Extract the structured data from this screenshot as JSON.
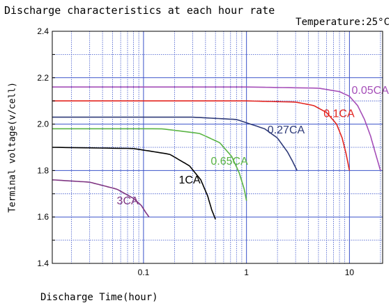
{
  "title": "Discharge characteristics at each hour rate",
  "temperature_note": "Temperature:25°C",
  "colors": {
    "grid": "#3a52c9",
    "axis": "#000000"
  },
  "chart_data": {
    "type": "line",
    "title": "Discharge characteristics at each hour rate",
    "xlabel": "Discharge Time(hour)",
    "ylabel": "Terminal voltage(v/cell)",
    "xscale": "log",
    "xlim": [
      0.013,
      21
    ],
    "ylim": [
      1.4,
      2.4
    ],
    "x_ticks": [
      {
        "value": 0.1,
        "label": "0.1"
      },
      {
        "value": 1,
        "label": "1"
      },
      {
        "value": 10,
        "label": "10"
      }
    ],
    "y_ticks": [
      {
        "value": 1.4,
        "label": "1.4"
      },
      {
        "value": 1.6,
        "label": "1.6"
      },
      {
        "value": 1.8,
        "label": "1.8"
      },
      {
        "value": 2.0,
        "label": "2.0"
      },
      {
        "value": 2.2,
        "label": "2.2"
      },
      {
        "value": 2.4,
        "label": "2.4"
      }
    ],
    "grid": true,
    "series": [
      {
        "name": "0.05CA",
        "color": "#a54eb8",
        "label_x": 10.5,
        "label_y": 2.13,
        "x": [
          0.013,
          1,
          5,
          8,
          10,
          12,
          14,
          16,
          18,
          20
        ],
        "y": [
          2.16,
          2.16,
          2.155,
          2.14,
          2.12,
          2.08,
          2.02,
          1.95,
          1.87,
          1.8
        ]
      },
      {
        "name": "0.1CA",
        "color": "#e3241f",
        "label_x": 5.6,
        "label_y": 2.03,
        "x": [
          0.013,
          1,
          3,
          4.5,
          6,
          7.5,
          8.5,
          9.3,
          10
        ],
        "y": [
          2.1,
          2.1,
          2.095,
          2.08,
          2.05,
          2.0,
          1.94,
          1.87,
          1.8
        ]
      },
      {
        "name": "0.27CA",
        "color": "#2e3a78",
        "label_x": 1.6,
        "label_y": 1.96,
        "x": [
          0.013,
          0.3,
          0.8,
          1.5,
          2,
          2.5,
          2.8,
          3.1
        ],
        "y": [
          2.03,
          2.03,
          2.02,
          1.98,
          1.94,
          1.88,
          1.84,
          1.8
        ]
      },
      {
        "name": "0.65CA",
        "color": "#5ab444",
        "label_x": 0.45,
        "label_y": 1.825,
        "x": [
          0.013,
          0.15,
          0.35,
          0.55,
          0.72,
          0.85,
          0.95,
          1.0
        ],
        "y": [
          1.98,
          1.98,
          1.96,
          1.92,
          1.86,
          1.79,
          1.72,
          1.67
        ]
      },
      {
        "name": "1CA",
        "color": "#000000",
        "label_x": 0.22,
        "label_y": 1.745,
        "x": [
          0.013,
          0.08,
          0.18,
          0.28,
          0.36,
          0.42,
          0.46,
          0.5
        ],
        "y": [
          1.9,
          1.895,
          1.87,
          1.82,
          1.76,
          1.69,
          1.63,
          1.59
        ]
      },
      {
        "name": "3CA",
        "color": "#7f3582",
        "label_x": 0.055,
        "label_y": 1.655,
        "x": [
          0.013,
          0.03,
          0.055,
          0.08,
          0.095,
          0.105,
          0.113
        ],
        "y": [
          1.76,
          1.75,
          1.72,
          1.68,
          1.65,
          1.62,
          1.6
        ]
      }
    ]
  }
}
